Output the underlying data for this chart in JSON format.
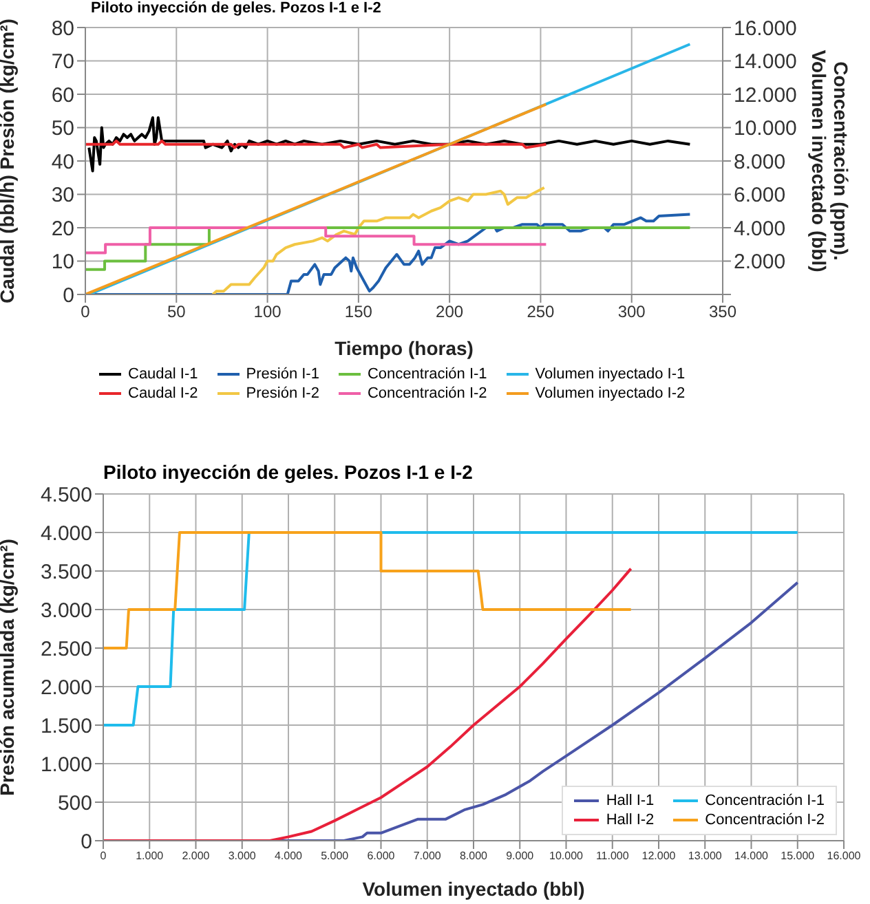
{
  "chart_data": [
    {
      "type": "line",
      "title": "Piloto inyección de geles. Pozos I-1 e I-2",
      "xlabel": "Tiempo (horas)",
      "ylabel": "Caudal (bbl/h) Presión (kg/cm²)",
      "y2label": "Concentración (ppm).\nVolumen inyectado (bbl)",
      "xlim": [
        0,
        350
      ],
      "xticks": [
        0,
        50,
        100,
        150,
        200,
        250,
        300,
        350
      ],
      "ylim": [
        0,
        80
      ],
      "yticks": [
        0,
        10,
        20,
        30,
        40,
        50,
        60,
        70,
        80
      ],
      "y2lim": [
        0,
        16000
      ],
      "y2ticks": [
        {
          "value": 0,
          "label": null
        },
        {
          "value": 2000,
          "label": "2.000"
        },
        {
          "value": 4000,
          "label": "4.000"
        },
        {
          "value": 6000,
          "label": "6.000"
        },
        {
          "value": 8000,
          "label": "8.000"
        },
        {
          "value": 10000,
          "label": "10.000"
        },
        {
          "value": 12000,
          "label": "12.000"
        },
        {
          "value": 14000,
          "label": "14.000"
        },
        {
          "value": 16000,
          "label": "16.000"
        }
      ],
      "grid": true,
      "legend": "bottom",
      "marker": "none",
      "line_style": "solid",
      "series": [
        {
          "name": "Caudal I-1",
          "color": "#000000",
          "x": [
            2,
            4,
            5,
            6,
            8,
            9,
            10,
            11,
            13,
            15,
            17,
            19,
            21,
            23,
            25,
            27,
            29,
            31,
            33,
            35,
            37,
            38,
            39,
            40,
            42,
            45,
            50,
            55,
            60,
            65,
            66,
            70,
            75,
            78,
            80,
            82,
            84,
            86,
            88,
            90,
            95,
            100,
            105,
            110,
            115,
            120,
            130,
            140,
            150,
            160,
            170,
            180,
            190,
            200,
            210,
            220,
            230,
            240,
            250,
            260,
            270,
            280,
            290,
            300,
            310,
            320,
            332
          ],
          "values": [
            44,
            37,
            47,
            46,
            39,
            50,
            44,
            45,
            46,
            45,
            47,
            46,
            48,
            47,
            48,
            46,
            47,
            48,
            47,
            49,
            53,
            45,
            47,
            53,
            46,
            46,
            46,
            46,
            46,
            46,
            44,
            45,
            44,
            46,
            43,
            45,
            44,
            45,
            44,
            46,
            45,
            46,
            45,
            46,
            45,
            46,
            45,
            46,
            45,
            46,
            45,
            46,
            45,
            45,
            46,
            45,
            46,
            45,
            45,
            46,
            45,
            46,
            45,
            46,
            45,
            46,
            45
          ]
        },
        {
          "name": "Caudal I-2",
          "color": "#e8262b",
          "x": [
            0,
            15,
            17,
            19,
            40,
            42,
            44,
            80,
            82,
            84,
            140,
            142,
            150,
            152,
            160,
            162,
            200,
            202,
            240,
            242,
            253
          ],
          "values": [
            45,
            45,
            46,
            45,
            45,
            46,
            45,
            45,
            44,
            45,
            45,
            44,
            45,
            44,
            45,
            44,
            45,
            45,
            45,
            44,
            45
          ]
        },
        {
          "name": "Presión I-1",
          "color": "#1f5fad",
          "x": [
            0,
            111,
            113,
            117,
            120,
            122,
            126,
            128,
            129,
            131,
            135,
            137,
            141,
            143,
            145,
            146,
            147,
            149,
            152,
            155,
            156,
            158,
            161,
            165,
            168,
            171,
            175,
            178,
            181,
            183,
            185,
            188,
            190,
            192,
            195,
            200,
            205,
            210,
            220,
            225,
            226,
            230,
            235,
            240,
            248,
            250,
            252,
            262,
            266,
            272,
            277,
            285,
            287,
            290,
            296,
            305,
            308,
            312,
            315,
            332
          ],
          "values": [
            0,
            0,
            4,
            4,
            6,
            6,
            9,
            7,
            3,
            6,
            6,
            8,
            10,
            11,
            10,
            7,
            11,
            8,
            5,
            2,
            1,
            2,
            4,
            8,
            10,
            12,
            9,
            9,
            11,
            13,
            9,
            11,
            11,
            14,
            14,
            16,
            15,
            16,
            20,
            20,
            19,
            20,
            20,
            21,
            21,
            20,
            21,
            21,
            19,
            19,
            20,
            20,
            19,
            21,
            21,
            23,
            22,
            22,
            23.5,
            24
          ]
        },
        {
          "name": "Presión I-2",
          "color": "#f2c744",
          "x": [
            70,
            72,
            76,
            80,
            90,
            93,
            98,
            100,
            103,
            105,
            110,
            115,
            125,
            130,
            133,
            138,
            142,
            148,
            150,
            153,
            160,
            165,
            178,
            180,
            183,
            190,
            195,
            200,
            205,
            210,
            213,
            220,
            228,
            230,
            232,
            237,
            242,
            245,
            252
          ],
          "values": [
            0,
            1,
            1,
            3,
            3,
            5,
            8,
            10,
            10,
            12,
            14,
            15,
            16,
            17,
            16,
            18,
            19,
            18,
            20,
            22,
            22,
            23,
            23,
            24,
            23,
            25,
            26,
            28,
            29,
            28,
            30,
            30,
            31,
            30,
            27,
            29,
            29,
            30,
            32
          ]
        },
        {
          "name": "Concentración I-1",
          "color": "#6cbf3f",
          "axis": "y2",
          "x": [
            0,
            10.6,
            10.6,
            33,
            33,
            68,
            68,
            332
          ],
          "values": [
            1500,
            1500,
            2000,
            2000,
            3000,
            3000,
            4000,
            4000
          ]
        },
        {
          "name": "Concentración I-2",
          "color": "#ef5fa7",
          "axis": "y2",
          "x": [
            0,
            11,
            11,
            35.5,
            35.5,
            132,
            132,
            180.5,
            180.5,
            253
          ],
          "values": [
            2500,
            2500,
            3000,
            3000,
            4000,
            4000,
            3500,
            3500,
            3000,
            3000
          ]
        },
        {
          "name": "Volumen inyectado I-1",
          "color": "#29b6e8",
          "axis": "y2",
          "x": [
            2,
            200,
            332
          ],
          "values": [
            0,
            9000,
            15000
          ]
        },
        {
          "name": "Volumen inyectado I-2",
          "color": "#f39c1f",
          "axis": "y2",
          "x": [
            0,
            200,
            253
          ],
          "values": [
            0,
            9000,
            11400
          ]
        }
      ]
    },
    {
      "type": "line",
      "title": "Piloto inyección de geles. Pozos I-1 e I-2",
      "xlabel": "Volumen inyectado (bbl)",
      "ylabel": "Presión acumulada (kg/cm²)",
      "xlim": [
        0,
        16000
      ],
      "xticks": [
        0,
        {
          "value": 1000,
          "label": "1.000"
        },
        {
          "value": 2000,
          "label": "2.000"
        },
        {
          "value": 3000,
          "label": "3.000"
        },
        {
          "value": 4000,
          "label": "4.000"
        },
        {
          "value": 5000,
          "label": "5.000"
        },
        {
          "value": 6000,
          "label": "6.000"
        },
        {
          "value": 7000,
          "label": "7.000"
        },
        {
          "value": 8000,
          "label": "8.000"
        },
        {
          "value": 9000,
          "label": "9.000"
        },
        {
          "value": 10000,
          "label": "10.000"
        },
        {
          "value": 11000,
          "label": "11.000"
        },
        {
          "value": 12000,
          "label": "12.000"
        },
        {
          "value": 13000,
          "label": "13.000"
        },
        {
          "value": 14000,
          "label": "14.000"
        },
        {
          "value": 15000,
          "label": "15.000"
        },
        {
          "value": 16000,
          "label": "16.000"
        }
      ],
      "ylim": [
        0,
        4500
      ],
      "yticks": [
        0,
        500,
        {
          "value": 1000,
          "label": "1.000"
        },
        {
          "value": 1500,
          "label": "1.500"
        },
        {
          "value": 2000,
          "label": "2.000"
        },
        {
          "value": 2500,
          "label": "2.500"
        },
        {
          "value": 3000,
          "label": "3.000"
        },
        {
          "value": 3500,
          "label": "3.500"
        },
        {
          "value": 4000,
          "label": "4.000"
        },
        {
          "value": 4500,
          "label": "4.500"
        }
      ],
      "grid": true,
      "legend": "bottom right",
      "marker": "none",
      "line_style": "solid",
      "series": [
        {
          "name": "Hall I-1",
          "color": "#4a55a8",
          "x": [
            0,
            5200,
            5600,
            5700,
            6000,
            6800,
            7400,
            7800,
            8200,
            8700,
            9200,
            9500,
            10000,
            11000,
            12000,
            13000,
            14000,
            15000
          ],
          "values": [
            0,
            0,
            50,
            100,
            100,
            280,
            280,
            400,
            470,
            600,
            770,
            900,
            1100,
            1500,
            1920,
            2370,
            2830,
            3350
          ]
        },
        {
          "name": "Hall I-2",
          "color": "#e8203a",
          "x": [
            0,
            3600,
            4000,
            4500,
            5000,
            5500,
            6000,
            6500,
            7000,
            7500,
            8000,
            8500,
            9000,
            9500,
            10000,
            10500,
            11000,
            11400
          ],
          "values": [
            0,
            0,
            50,
            120,
            260,
            410,
            560,
            760,
            960,
            1220,
            1500,
            1750,
            2000,
            2300,
            2620,
            2930,
            3250,
            3530
          ]
        },
        {
          "name": "Concentración I-1",
          "color": "#1fbcec",
          "x": [
            0,
            650,
            750,
            1450,
            1520,
            3050,
            3150,
            15000
          ],
          "values": [
            1500,
            1500,
            2000,
            2000,
            3000,
            3000,
            4000,
            4000
          ]
        },
        {
          "name": "Concentración I-2",
          "color": "#f7a21b",
          "x": [
            0,
            500,
            550,
            1550,
            1650,
            6000,
            6000,
            8100,
            8200,
            11400
          ],
          "values": [
            2500,
            2500,
            3000,
            3000,
            4000,
            4000,
            3500,
            3500,
            3000,
            3000
          ]
        }
      ]
    }
  ]
}
